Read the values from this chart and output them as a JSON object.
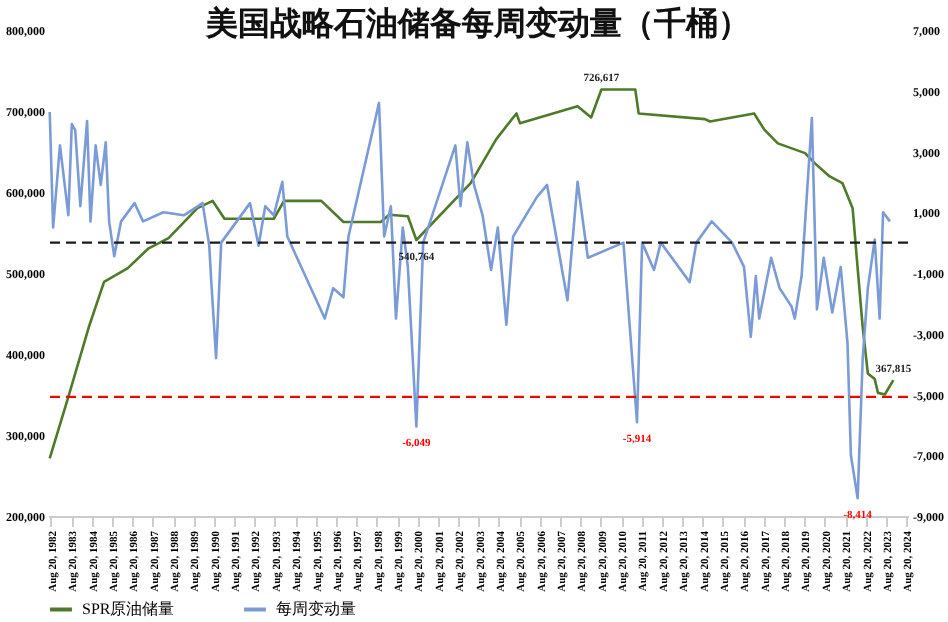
{
  "chart_data": {
    "type": "line",
    "title": "美国战略石油储备每周变动量（千桶）",
    "xlim": [
      "1982-07-01",
      "2024-09-20"
    ],
    "xticks": [
      {
        "value": "1982-08-20",
        "label": "Aug 20, 1982"
      },
      {
        "value": "1983-08-20",
        "label": "Aug 20, 1983"
      },
      {
        "value": "1984-08-20",
        "label": "Aug 20, 1984"
      },
      {
        "value": "1985-08-20",
        "label": "Aug 20, 1985"
      },
      {
        "value": "1986-08-20",
        "label": "Aug 20, 1986"
      },
      {
        "value": "1987-08-20",
        "label": "Aug 20, 1987"
      },
      {
        "value": "1988-08-20",
        "label": "Aug 20, 1988"
      },
      {
        "value": "1989-08-20",
        "label": "Aug 20, 1989"
      },
      {
        "value": "1990-08-20",
        "label": "Aug 20, 1990"
      },
      {
        "value": "1991-08-20",
        "label": "Aug 20, 1991"
      },
      {
        "value": "1992-08-20",
        "label": "Aug 20, 1992"
      },
      {
        "value": "1993-08-20",
        "label": "Aug 20, 1993"
      },
      {
        "value": "1994-08-20",
        "label": "Aug 20, 1994"
      },
      {
        "value": "1995-08-20",
        "label": "Aug 20, 1995"
      },
      {
        "value": "1996-08-20",
        "label": "Aug 20, 1996"
      },
      {
        "value": "1997-08-20",
        "label": "Aug 20, 1997"
      },
      {
        "value": "1998-08-20",
        "label": "Aug 20, 1998"
      },
      {
        "value": "1999-08-20",
        "label": "Aug 20, 1999"
      },
      {
        "value": "2000-08-20",
        "label": "Aug 20, 2000"
      },
      {
        "value": "2001-08-20",
        "label": "Aug 20, 2001"
      },
      {
        "value": "2002-08-20",
        "label": "Aug 20, 2002"
      },
      {
        "value": "2003-08-20",
        "label": "Aug 20, 2003"
      },
      {
        "value": "2004-08-20",
        "label": "Aug 20, 2004"
      },
      {
        "value": "2005-08-20",
        "label": "Aug 20, 2005"
      },
      {
        "value": "2006-08-20",
        "label": "Aug 20, 2006"
      },
      {
        "value": "2007-08-20",
        "label": "Aug 20, 2007"
      },
      {
        "value": "2008-08-20",
        "label": "Aug 20, 2008"
      },
      {
        "value": "2009-08-20",
        "label": "Aug 20, 2009"
      },
      {
        "value": "2010-08-20",
        "label": "Aug 20, 2010"
      },
      {
        "value": "2011-08-20",
        "label": "Aug 20, 2011"
      },
      {
        "value": "2012-08-20",
        "label": "Aug 20, 2012"
      },
      {
        "value": "2013-08-20",
        "label": "Aug 20, 2013"
      },
      {
        "value": "2014-08-20",
        "label": "Aug 20, 2014"
      },
      {
        "value": "2015-08-20",
        "label": "Aug 20, 2015"
      },
      {
        "value": "2016-08-20",
        "label": "Aug 20, 2016"
      },
      {
        "value": "2017-08-20",
        "label": "Aug 20, 2017"
      },
      {
        "value": "2018-08-20",
        "label": "Aug 20, 2018"
      },
      {
        "value": "2019-08-20",
        "label": "Aug 20, 2019"
      },
      {
        "value": "2020-08-20",
        "label": "Aug 20, 2020"
      },
      {
        "value": "2021-08-20",
        "label": "Aug 20, 2021"
      },
      {
        "value": "2022-08-20",
        "label": "Aug 20, 2022"
      },
      {
        "value": "2023-08-20",
        "label": "Aug 20, 2023"
      },
      {
        "value": "2024-08-20",
        "label": "Aug 20, 2024"
      }
    ],
    "ylim": [
      200000,
      800000
    ],
    "yticks": [
      {
        "value": 200000,
        "label": "200,000"
      },
      {
        "value": 300000,
        "label": "300,000"
      },
      {
        "value": 400000,
        "label": "400,000"
      },
      {
        "value": 500000,
        "label": "500,000"
      },
      {
        "value": 600000,
        "label": "600,000"
      },
      {
        "value": 700000,
        "label": "700,000"
      },
      {
        "value": 800000,
        "label": "800,000"
      }
    ],
    "y2lim": [
      -9000,
      7000
    ],
    "y2ticks": [
      {
        "value": -9000,
        "label": "-9,000"
      },
      {
        "value": -7000,
        "label": "-7,000"
      },
      {
        "value": -5000,
        "label": "-5,000"
      },
      {
        "value": -3000,
        "label": "-3,000"
      },
      {
        "value": -1000,
        "label": "-1,000"
      },
      {
        "value": 1000,
        "label": "1,000"
      },
      {
        "value": 3000,
        "label": "3,000"
      },
      {
        "value": 5000,
        "label": "5,000"
      },
      {
        "value": 7000,
        "label": "7,000"
      }
    ],
    "legend": "bottom",
    "marker": "none",
    "ref_lines": [
      {
        "axis": "y2",
        "value": 0,
        "color": "#1a1a1a",
        "line_style": "dashed"
      },
      {
        "axis": "y",
        "value": 347000,
        "color": "#ff0000",
        "line_style": "dashed"
      }
    ],
    "series": [
      {
        "name": "SPR原油储量",
        "color": "#4e7a2a",
        "type": "line",
        "x": [
          "1982-08",
          "1983-07",
          "1984-07",
          "1985-04",
          "1986-06",
          "1987-06",
          "1988-06",
          "1989-11",
          "1990-08",
          "1991-03",
          "1993-08",
          "1994-02",
          "1995-12",
          "1997-01",
          "1998-11",
          "1999-04",
          "2000-03",
          "2000-08",
          "2003-04",
          "2004-07",
          "2005-07",
          "2005-09",
          "2008-07",
          "2009-03",
          "2009-09",
          "2011-05",
          "2011-07",
          "2014-10",
          "2015-01",
          "2017-03",
          "2017-09",
          "2018-05",
          "2019-09",
          "2020-03",
          "2020-11",
          "2021-07",
          "2022-01",
          "2022-04",
          "2022-07",
          "2022-10",
          "2023-02",
          "2023-04",
          "2023-08",
          "2024-01"
        ],
        "values": [
          271000,
          347000,
          433000,
          489000,
          506000,
          530000,
          543000,
          580000,
          589000,
          567000,
          567000,
          589000,
          589000,
          563000,
          563000,
          572000,
          570000,
          540764,
          611000,
          665000,
          697000,
          685000,
          706000,
          692000,
          726617,
          726617,
          697000,
          690000,
          687000,
          697000,
          677000,
          660000,
          648000,
          635000,
          620000,
          611000,
          580000,
          506000,
          433000,
          376000,
          369000,
          352000,
          350000,
          367815
        ],
        "value_labels": [
          null,
          null,
          null,
          null,
          null,
          null,
          null,
          null,
          null,
          null,
          null,
          null,
          null,
          null,
          null,
          null,
          null,
          "540,764",
          null,
          null,
          null,
          null,
          null,
          null,
          "726,617",
          null,
          null,
          null,
          null,
          null,
          null,
          null,
          null,
          null,
          null,
          null,
          null,
          null,
          null,
          null,
          null,
          null,
          null,
          "367,815"
        ]
      },
      {
        "name": "每周变动量",
        "color": "#7b9bd6",
        "type": "line",
        "axis": "y2",
        "x": [
          "1982-08",
          "1982-10",
          "1983-02",
          "1983-07",
          "1983-09",
          "1983-11",
          "1984-02",
          "1984-06",
          "1984-08",
          "1984-11",
          "1985-02",
          "1985-05",
          "1985-07",
          "1985-10",
          "1986-02",
          "1986-10",
          "1987-03",
          "1988-03",
          "1989-03",
          "1990-02",
          "1990-06",
          "1990-07",
          "1990-10",
          "1991-01",
          "1992-06",
          "1992-11",
          "1993-03",
          "1993-08",
          "1994-01",
          "1994-04",
          "1996-02",
          "1996-07",
          "1997-01",
          "1997-04",
          "1998-10",
          "1999-01",
          "1999-05",
          "1999-08",
          "1999-12",
          "2000-03",
          "2000-08",
          "2000-12",
          "2002-07",
          "2002-10",
          "2003-02",
          "2003-06",
          "2003-11",
          "2004-04",
          "2004-08",
          "2005-01",
          "2005-05",
          "2006-07",
          "2007-01",
          "2008-01",
          "2008-07",
          "2009-01",
          "2010-10",
          "2011-06",
          "2011-09",
          "2012-04",
          "2012-08",
          "2014-01",
          "2014-05",
          "2015-02",
          "2016-02",
          "2016-09",
          "2017-01",
          "2017-04",
          "2017-06",
          "2018-01",
          "2018-06",
          "2019-01",
          "2019-03",
          "2019-07",
          "2020-01",
          "2020-04",
          "2020-08",
          "2021-01",
          "2021-06",
          "2021-10",
          "2021-12",
          "2022-04",
          "2022-07",
          "2022-10",
          "2023-02",
          "2023-05",
          "2023-07",
          "2023-11"
        ],
        "values": [
          4300,
          500,
          3200,
          900,
          3900,
          3700,
          1200,
          4000,
          700,
          3200,
          1900,
          3300,
          700,
          -450,
          700,
          1300,
          700,
          1000,
          900,
          1300,
          -100,
          -1100,
          -3800,
          0,
          1300,
          -100,
          1200,
          900,
          2000,
          200,
          -2500,
          -1500,
          -1800,
          200,
          4600,
          200,
          1200,
          -2500,
          500,
          -800,
          -6049,
          0,
          3200,
          1200,
          3300,
          1900,
          900,
          -900,
          500,
          -2700,
          200,
          1500,
          1900,
          -1900,
          2000,
          -500,
          0,
          -5914,
          0,
          -900,
          0,
          -1300,
          0,
          700,
          0,
          -800,
          -3100,
          -1100,
          -2500,
          -500,
          -1500,
          -2100,
          -2500,
          -1100,
          4100,
          -2200,
          -500,
          -2300,
          -800,
          -3300,
          -7000,
          -8414,
          -3800,
          -1500,
          100,
          -2500,
          1000,
          700
        ],
        "value_labels": [
          null,
          null,
          null,
          null,
          null,
          null,
          null,
          null,
          null,
          null,
          null,
          null,
          null,
          null,
          null,
          null,
          null,
          null,
          null,
          null,
          null,
          null,
          null,
          null,
          null,
          null,
          null,
          null,
          null,
          null,
          null,
          null,
          null,
          null,
          null,
          null,
          null,
          null,
          null,
          null,
          "-6,049",
          null,
          null,
          null,
          null,
          null,
          null,
          null,
          null,
          null,
          null,
          null,
          null,
          null,
          null,
          null,
          null,
          "-5,914",
          null,
          null,
          null,
          null,
          null,
          null,
          null,
          null,
          null,
          null,
          null,
          null,
          null,
          null,
          null,
          null,
          null,
          null,
          null,
          null,
          null,
          null,
          null,
          "-8,414",
          null,
          null,
          null,
          null,
          null,
          null
        ]
      }
    ]
  }
}
